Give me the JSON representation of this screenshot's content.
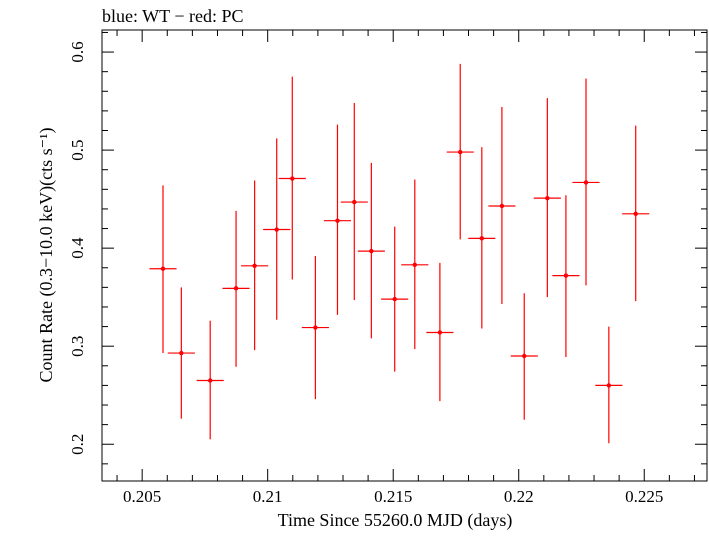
{
  "chart_data": {
    "type": "scatter",
    "title": "blue: WT − red: PC",
    "xlabel": "Time Since 55260.0 MJD (days)",
    "ylabel": "Count Rate (0.3−10.0 keV)(cts s⁻¹)",
    "xlim": [
      0.2034,
      0.2275
    ],
    "ylim": [
      0.1625,
      0.6225
    ],
    "x_ticks": [
      0.205,
      0.21,
      0.215,
      0.22,
      0.225
    ],
    "x_tick_labels": [
      "0.205",
      "0.21",
      "0.215",
      "0.22",
      "0.225"
    ],
    "y_ticks": [
      0.2,
      0.3,
      0.4,
      0.5,
      0.6
    ],
    "y_tick_labels": [
      "0.2",
      "0.3",
      "0.4",
      "0.5",
      "0.6"
    ],
    "grid": false,
    "legend": "none",
    "series": [
      {
        "color": "#ff0000",
        "points": [
          {
            "x": 0.20583,
            "xerr": 0.00054,
            "y": 0.379,
            "ylo": 0.293,
            "yhi": 0.464
          },
          {
            "x": 0.20656,
            "xerr": 0.00054,
            "y": 0.293,
            "ylo": 0.226,
            "yhi": 0.36
          },
          {
            "x": 0.20771,
            "xerr": 0.00054,
            "y": 0.265,
            "ylo": 0.205,
            "yhi": 0.326
          },
          {
            "x": 0.20874,
            "xerr": 0.00054,
            "y": 0.359,
            "ylo": 0.279,
            "yhi": 0.438
          },
          {
            "x": 0.20948,
            "xerr": 0.00054,
            "y": 0.382,
            "ylo": 0.296,
            "yhi": 0.469
          },
          {
            "x": 0.21036,
            "xerr": 0.00054,
            "y": 0.419,
            "ylo": 0.327,
            "yhi": 0.512
          },
          {
            "x": 0.21098,
            "xerr": 0.00054,
            "y": 0.471,
            "ylo": 0.368,
            "yhi": 0.575
          },
          {
            "x": 0.2119,
            "xerr": 0.00054,
            "y": 0.319,
            "ylo": 0.246,
            "yhi": 0.392
          },
          {
            "x": 0.21278,
            "xerr": 0.00054,
            "y": 0.428,
            "ylo": 0.332,
            "yhi": 0.526
          },
          {
            "x": 0.21345,
            "xerr": 0.00054,
            "y": 0.447,
            "ylo": 0.347,
            "yhi": 0.548
          },
          {
            "x": 0.21413,
            "xerr": 0.00054,
            "y": 0.397,
            "ylo": 0.308,
            "yhi": 0.487
          },
          {
            "x": 0.21506,
            "xerr": 0.00054,
            "y": 0.348,
            "ylo": 0.274,
            "yhi": 0.422
          },
          {
            "x": 0.21586,
            "xerr": 0.00054,
            "y": 0.383,
            "ylo": 0.297,
            "yhi": 0.47
          },
          {
            "x": 0.21686,
            "xerr": 0.00054,
            "y": 0.314,
            "ylo": 0.244,
            "yhi": 0.385
          },
          {
            "x": 0.21767,
            "xerr": 0.00054,
            "y": 0.498,
            "ylo": 0.409,
            "yhi": 0.588
          },
          {
            "x": 0.21853,
            "xerr": 0.00054,
            "y": 0.41,
            "ylo": 0.318,
            "yhi": 0.503
          },
          {
            "x": 0.21933,
            "xerr": 0.00054,
            "y": 0.443,
            "ylo": 0.343,
            "yhi": 0.544
          },
          {
            "x": 0.22022,
            "xerr": 0.00054,
            "y": 0.29,
            "ylo": 0.225,
            "yhi": 0.354
          },
          {
            "x": 0.22114,
            "xerr": 0.00054,
            "y": 0.451,
            "ylo": 0.35,
            "yhi": 0.553
          },
          {
            "x": 0.22188,
            "xerr": 0.00054,
            "y": 0.372,
            "ylo": 0.289,
            "yhi": 0.454
          },
          {
            "x": 0.22268,
            "xerr": 0.00054,
            "y": 0.467,
            "ylo": 0.362,
            "yhi": 0.573
          },
          {
            "x": 0.22359,
            "xerr": 0.00054,
            "y": 0.26,
            "ylo": 0.201,
            "yhi": 0.32
          },
          {
            "x": 0.22466,
            "xerr": 0.00054,
            "y": 0.435,
            "ylo": 0.346,
            "yhi": 0.525
          }
        ]
      }
    ]
  }
}
